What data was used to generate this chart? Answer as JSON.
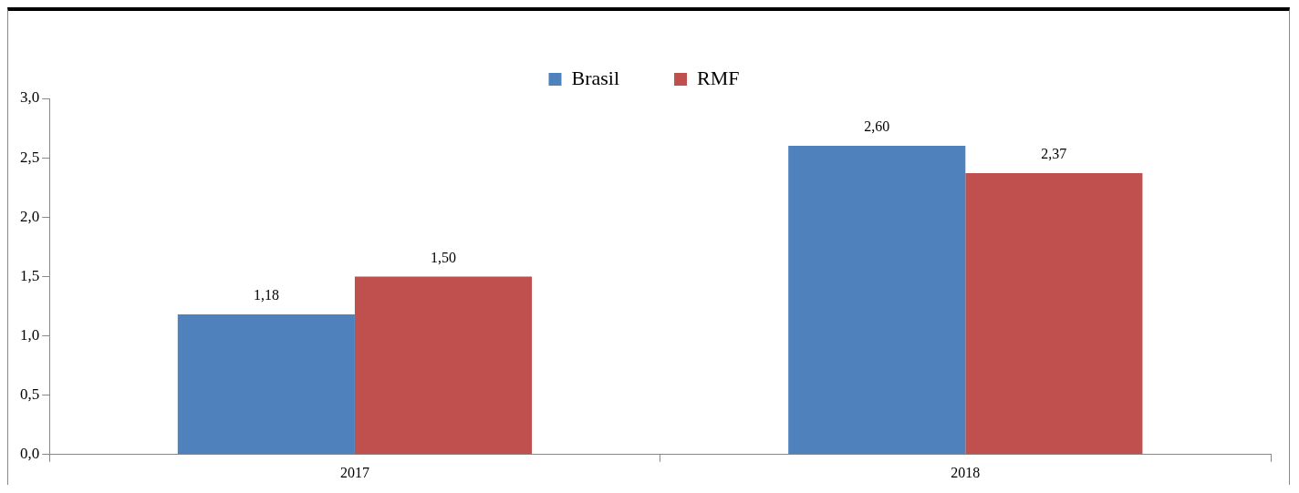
{
  "chart_data": {
    "type": "bar",
    "categories": [
      "2017",
      "2018"
    ],
    "series": [
      {
        "name": "Brasil",
        "color": "#4f81bd",
        "values": [
          1.18,
          2.6
        ],
        "value_labels": [
          "1,18",
          "2,60"
        ]
      },
      {
        "name": "RMF",
        "color": "#c0504d",
        "values": [
          1.5,
          2.37
        ],
        "value_labels": [
          "1,50",
          "2,37"
        ]
      }
    ],
    "ylim": [
      0,
      3
    ],
    "yticks": [
      {
        "value": 0,
        "label": "0,0"
      },
      {
        "value": 0.5,
        "label": "0,5"
      },
      {
        "value": 1,
        "label": "1,0"
      },
      {
        "value": 1.5,
        "label": "1,5"
      },
      {
        "value": 2,
        "label": "2,0"
      },
      {
        "value": 2.5,
        "label": "2,5"
      },
      {
        "value": 3,
        "label": "3,0"
      }
    ],
    "grid": false,
    "legend": "top"
  }
}
